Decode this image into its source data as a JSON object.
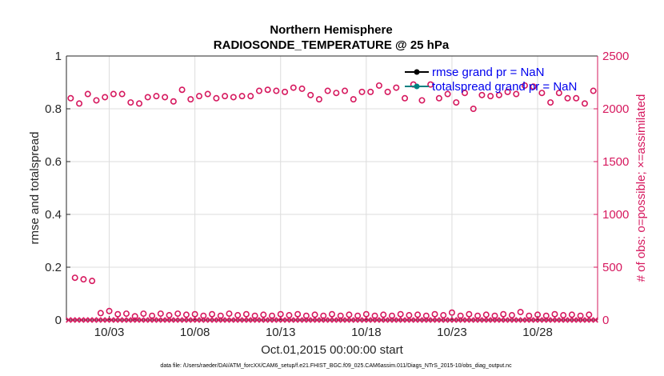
{
  "chart_data": {
    "type": "scatter",
    "title": [
      "Northern Hemisphere",
      "RADIOSONDE_TEMPERATURE @ 25 hPa"
    ],
    "xlabel": "Oct.01,2015 00:00:00 start",
    "ylabel_left": "rmse and totalspread",
    "ylabel_right": "# of obs: o=possible; ×=assimilated",
    "footnote": "data file: /Users/raeder/DAI/ATM_forcXX/CAM6_setup/f.e21.FHIST_BGC.f09_025.CAM6assim.011/Diags_NTrS_2015-10/obs_diag_output.nc",
    "x_range_days": [
      0.5,
      31.5
    ],
    "x_ticks": [
      {
        "day": 3,
        "label": "10/03"
      },
      {
        "day": 8,
        "label": "10/08"
      },
      {
        "day": 13,
        "label": "10/13"
      },
      {
        "day": 18,
        "label": "10/18"
      },
      {
        "day": 23,
        "label": "10/23"
      },
      {
        "day": 28,
        "label": "10/28"
      }
    ],
    "ylim_left": [
      0,
      1
    ],
    "y_ticks_left": [
      "0",
      "0.2",
      "0.4",
      "0.6",
      "0.8",
      "1"
    ],
    "ylim_right": [
      0,
      2500
    ],
    "y_ticks_right": [
      "0",
      "500",
      "1000",
      "1500",
      "2000",
      "2500"
    ],
    "grid": true,
    "legend_position": "top-right",
    "legend": [
      {
        "label": "rmse grand pr = NaN",
        "color": "#000000"
      },
      {
        "label": "totalspread grand pr = NaN",
        "color": "#008080"
      }
    ],
    "series": [
      {
        "name": "rmse",
        "axis": "left",
        "values": []
      },
      {
        "name": "totalspread",
        "axis": "left",
        "values": []
      },
      {
        "name": "obs possible (upper cluster)",
        "axis": "right",
        "marker": "o",
        "color": "#d6185e",
        "x_days": [
          0.75,
          1.25,
          1.75,
          2.25,
          2.75,
          3.25,
          3.75,
          4.25,
          4.75,
          5.25,
          5.75,
          6.25,
          6.75,
          7.25,
          7.75,
          8.25,
          8.75,
          9.25,
          9.75,
          10.25,
          10.75,
          11.25,
          11.75,
          12.25,
          12.75,
          13.25,
          13.75,
          14.25,
          14.75,
          15.25,
          15.75,
          16.25,
          16.75,
          17.25,
          17.75,
          18.25,
          18.75,
          19.25,
          19.75,
          20.25,
          20.75,
          21.25,
          21.75,
          22.25,
          22.75,
          23.25,
          23.75,
          24.25,
          24.75,
          25.25,
          25.75,
          26.25,
          26.75,
          27.25,
          27.75,
          28.25,
          28.75,
          29.25,
          29.75,
          30.25,
          30.75,
          31.25
        ],
        "values": [
          2100,
          2050,
          2140,
          2080,
          2110,
          2140,
          2140,
          2060,
          2050,
          2110,
          2120,
          2110,
          2070,
          2180,
          2090,
          2120,
          2140,
          2100,
          2120,
          2110,
          2120,
          2120,
          2170,
          2180,
          2170,
          2160,
          2200,
          2190,
          2130,
          2090,
          2170,
          2150,
          2170,
          2090,
          2160,
          2160,
          2220,
          2160,
          2200,
          2100,
          2230,
          2080,
          2230,
          2100,
          2140,
          2060,
          2150,
          2000,
          2130,
          2120,
          2130,
          2160,
          2140,
          2220,
          2210,
          2150,
          2060,
          2150,
          2100,
          2100,
          2050,
          2170
        ]
      },
      {
        "name": "obs possible (early low values)",
        "axis": "right",
        "marker": "o",
        "color": "#d6185e",
        "x_days": [
          1.0,
          1.5,
          2.0
        ],
        "values": [
          400,
          385,
          370
        ]
      },
      {
        "name": "obs possible (lower cluster)",
        "axis": "right",
        "marker": "o",
        "color": "#d6185e",
        "x_days": [
          2.5,
          3.0,
          3.5,
          4.0,
          4.5,
          5.0,
          5.5,
          6.0,
          6.5,
          7.0,
          7.5,
          8.0,
          8.5,
          9.0,
          9.5,
          10.0,
          10.5,
          11.0,
          11.5,
          12.0,
          12.5,
          13.0,
          13.5,
          14.0,
          14.5,
          15.0,
          15.5,
          16.0,
          16.5,
          17.0,
          17.5,
          18.0,
          18.5,
          19.0,
          19.5,
          20.0,
          20.5,
          21.0,
          21.5,
          22.0,
          22.5,
          23.0,
          23.5,
          24.0,
          24.5,
          25.0,
          25.5,
          26.0,
          26.5,
          27.0,
          27.5,
          28.0,
          28.5,
          29.0,
          29.5,
          30.0,
          30.5,
          31.0
        ],
        "values": [
          65,
          85,
          55,
          60,
          35,
          60,
          40,
          60,
          45,
          60,
          50,
          55,
          40,
          55,
          40,
          60,
          45,
          55,
          40,
          50,
          40,
          55,
          45,
          55,
          40,
          50,
          40,
          55,
          40,
          50,
          40,
          55,
          40,
          50,
          40,
          55,
          45,
          50,
          40,
          55,
          45,
          70,
          40,
          55,
          40,
          50,
          40,
          55,
          45,
          75,
          40,
          50,
          40,
          55,
          45,
          50,
          40,
          50
        ]
      },
      {
        "name": "obs assimilated",
        "axis": "right",
        "marker": "x",
        "color": "#d6185e",
        "value_all": 0,
        "count": 124
      }
    ]
  }
}
